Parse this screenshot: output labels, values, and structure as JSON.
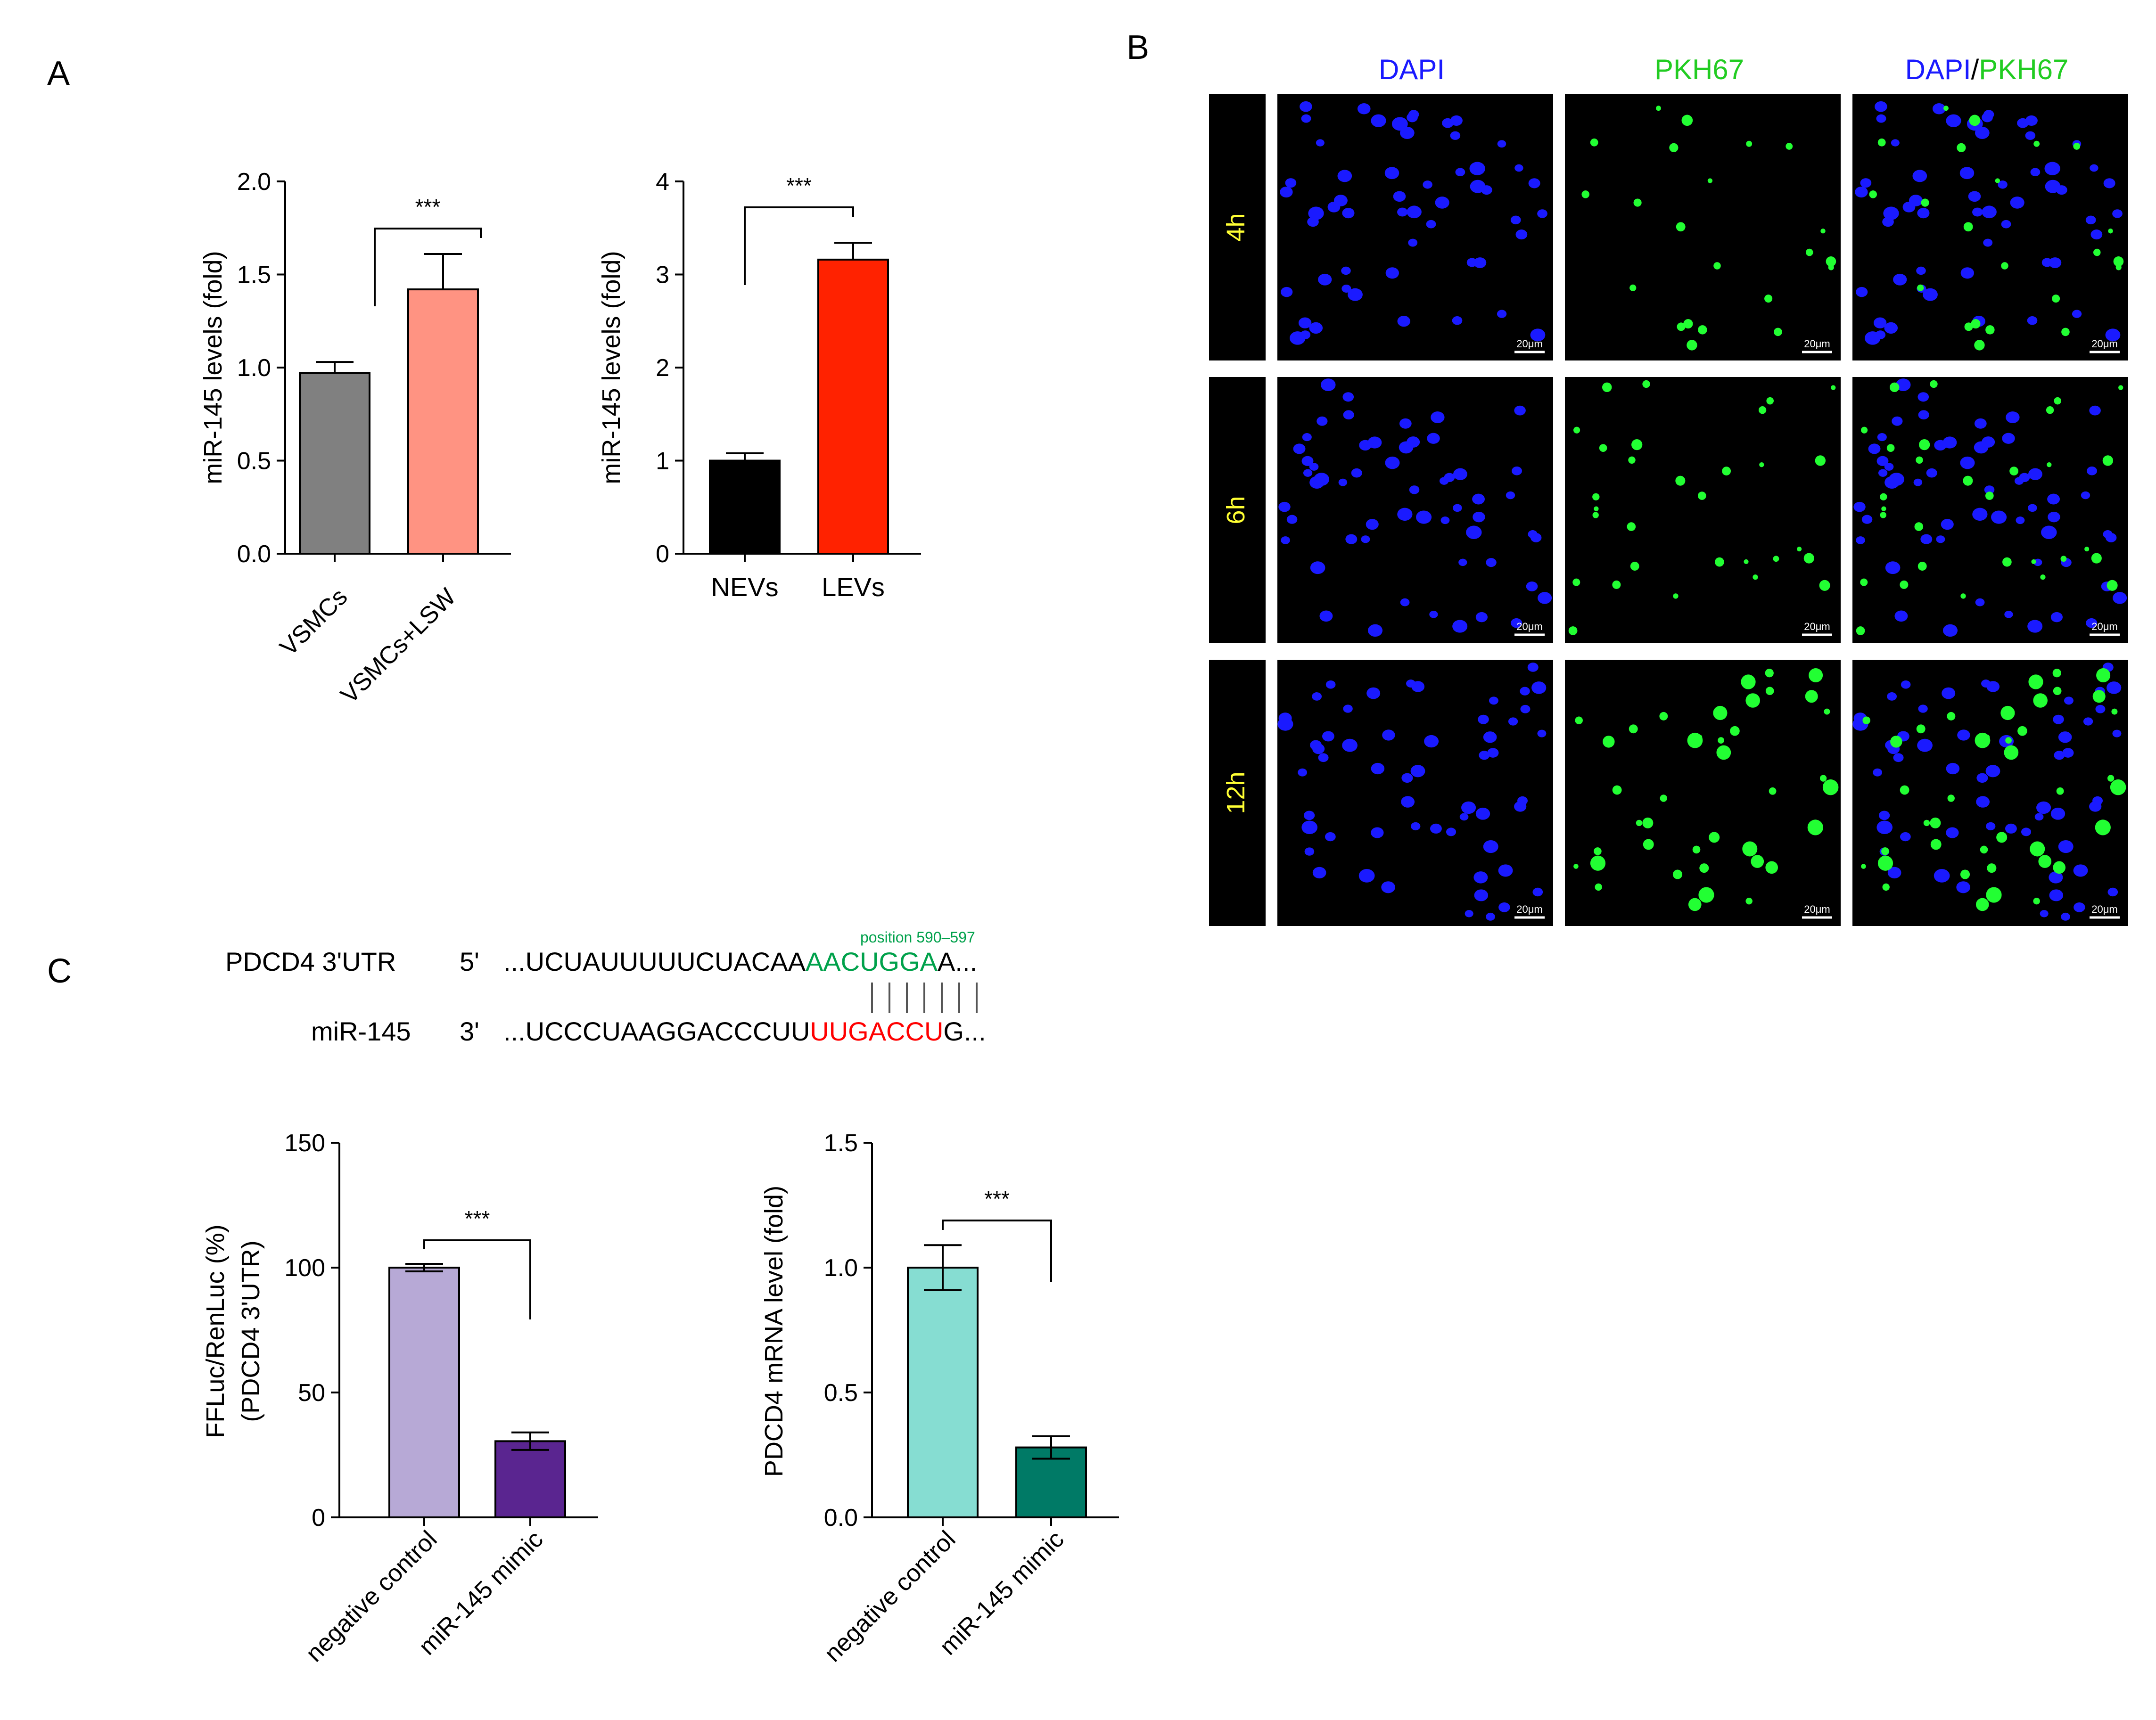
{
  "panel_labels": {
    "a": "A",
    "b": "B",
    "c": "C"
  },
  "chart_data": [
    {
      "id": "A1",
      "type": "bar",
      "ylabel": "miR-145 levels (fold)",
      "ylim": [
        0,
        2.0
      ],
      "ticks": [
        "0.0",
        "0.5",
        "1.0",
        "1.5",
        "2.0"
      ],
      "categories": [
        "VSMCs",
        "VSMCs+LSW"
      ],
      "values": [
        0.97,
        1.42
      ],
      "errors": [
        0.06,
        0.19
      ],
      "colors": [
        "#808080",
        "#ff9382"
      ],
      "significance": "***",
      "rotated_labels": true
    },
    {
      "id": "A2",
      "type": "bar",
      "ylabel": "miR-145 levels (fold)",
      "ylim": [
        0,
        4
      ],
      "ticks": [
        "0",
        "1",
        "2",
        "3",
        "4"
      ],
      "categories": [
        "NEVs",
        "LEVs"
      ],
      "values": [
        1.0,
        3.16
      ],
      "errors": [
        0.08,
        0.18
      ],
      "colors": [
        "#000000",
        "#ff2200"
      ],
      "significance": "***",
      "rotated_labels": false
    },
    {
      "id": "C1",
      "type": "bar",
      "ylabel": "FFLuc/RenLuc (%)",
      "ylabel2": "(PDCD4 3'UTR)",
      "ylim": [
        0,
        150
      ],
      "ticks": [
        "0",
        "50",
        "100",
        "150"
      ],
      "categories": [
        "negative control",
        "miR-145 mimic"
      ],
      "values": [
        100,
        30.5
      ],
      "errors": [
        1.5,
        3.5
      ],
      "colors": [
        "#b7a9d6",
        "#5a2590"
      ],
      "significance": "***",
      "rotated_labels": true
    },
    {
      "id": "C2",
      "type": "bar",
      "ylabel": "PDCD4 mRNA level (fold)",
      "ylim": [
        0,
        1.5
      ],
      "ticks": [
        "0.0",
        "0.5",
        "1.0",
        "1.5"
      ],
      "categories": [
        "negative control",
        "miR-145 mimic"
      ],
      "values": [
        1.0,
        0.28
      ],
      "errors": [
        0.09,
        0.045
      ],
      "colors": [
        "#86ddd2",
        "#007a66"
      ],
      "significance": "***",
      "rotated_labels": true
    }
  ],
  "microscopy": {
    "columns": [
      "DAPI",
      "PKH67"
    ],
    "merge_label": {
      "part1": "DAPI",
      "sep": "/",
      "part2": "PKH67"
    },
    "rows": [
      "4h",
      "6h",
      "12h"
    ],
    "scale_bar": "20μm",
    "colors": {
      "dapi": "#1a1aff",
      "pkh67": "#22ff33",
      "row_label": "#ffff33"
    }
  },
  "sequence": {
    "pdcd4_label": "PDCD4 3'UTR",
    "pdcd4_end": "5'",
    "pdcd4_prefix": "...UCUAUUUUUCUACAA",
    "pdcd4_match": "AACUGGA",
    "pdcd4_suffix": "A...",
    "position": "position 590–597",
    "mir_label": "miR-145",
    "mir_end": "3'",
    "mir_prefix": "...UCCCUAAGGACCCUU",
    "mir_match": "UUGACCU",
    "mir_suffix": "G...",
    "match_color": "#00a14b",
    "mir_color": "#ff0000"
  }
}
